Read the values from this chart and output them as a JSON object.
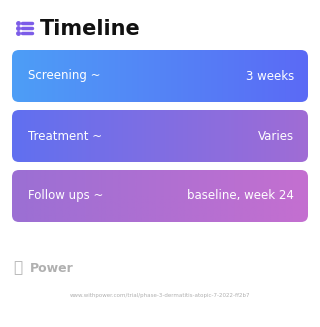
{
  "title": "Timeline",
  "title_icon_color": "#7c5ce8",
  "background_color": "#ffffff",
  "rows": [
    {
      "label": "Screening ~",
      "value": "3 weeks",
      "gradient_left": "#4d9ef7",
      "gradient_right": "#5b6af5"
    },
    {
      "label": "Treatment ~",
      "value": "Varies",
      "gradient_left": "#6070f0",
      "gradient_right": "#a06cd5"
    },
    {
      "label": "Follow ups ~",
      "value": "baseline, week 24",
      "gradient_left": "#9b6fd4",
      "gradient_right": "#c46fd0"
    }
  ],
  "watermark_text": "Power",
  "watermark_color": "#b0b0b0",
  "url_text": "www.withpower.com/trial/phase-3-dermatitis-atopic-7-2022-ff2b7",
  "url_color": "#b0b0b0",
  "text_color": "#ffffff",
  "label_fontsize": 8.5,
  "value_fontsize": 8.5,
  "title_fontsize": 15
}
